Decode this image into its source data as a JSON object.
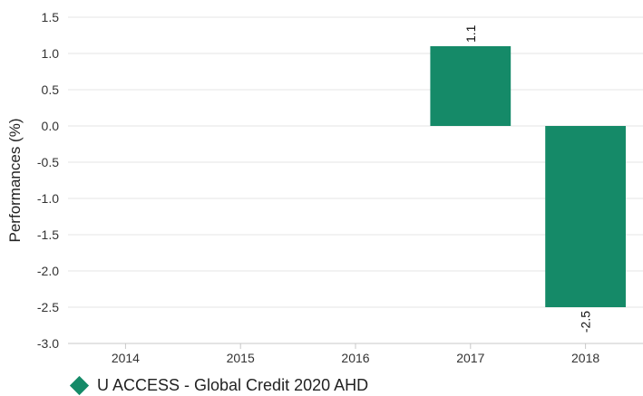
{
  "chart_data": {
    "type": "bar",
    "categories": [
      "2014",
      "2015",
      "2016",
      "2017",
      "2018"
    ],
    "series": [
      {
        "name": "U ACCESS - Global Credit 2020 AHD",
        "values": [
          null,
          null,
          null,
          1.1,
          -2.5
        ],
        "labels": [
          "",
          "",
          "",
          "1.1",
          "-2.5"
        ],
        "color": "#158a68"
      }
    ],
    "ylabel": "Performances (%)",
    "ylim": [
      -3.0,
      1.5
    ],
    "yticks": [
      1.5,
      1.0,
      0.5,
      0.0,
      -0.5,
      -1.0,
      -1.5,
      -2.0,
      -2.5,
      -3.0
    ],
    "ytick_labels": [
      "1.5",
      "1.0",
      "0.5",
      "0.0",
      "-0.5",
      "-1.0",
      "-1.5",
      "-2.0",
      "-2.5",
      "-3.0"
    ],
    "grid": true,
    "legend": "bottom-left"
  },
  "colors": {
    "bar": "#158a68",
    "grid": "#e6e6e6",
    "axis": "#c8c8c8",
    "text": "#333333"
  }
}
